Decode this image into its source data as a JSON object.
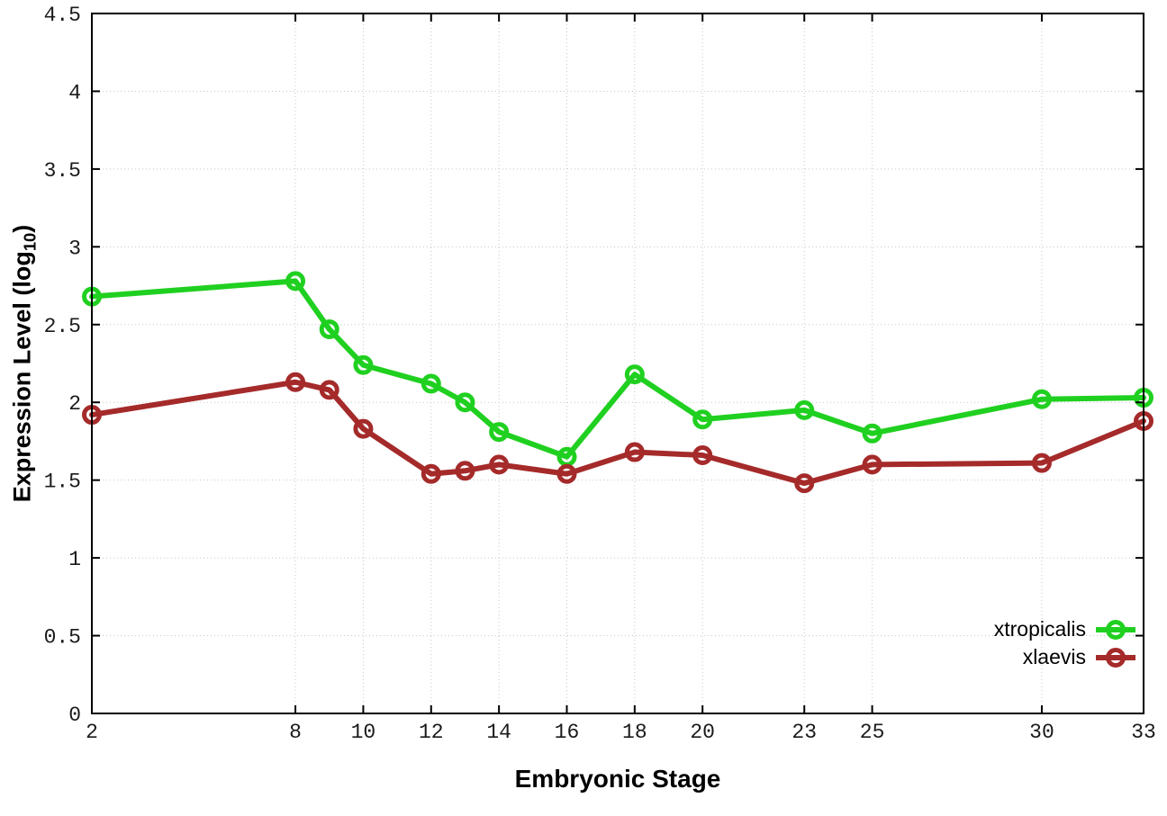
{
  "chart_data": {
    "type": "line",
    "title": "",
    "xlabel": "Embryonic Stage",
    "ylabel": "Expression Level (log10)",
    "ylabel_base": "Expression Level (log",
    "ylabel_sub": "10",
    "ylabel_close": ")",
    "xlim": [
      2,
      33
    ],
    "ylim": [
      0,
      4.5
    ],
    "x_ticks": [
      2,
      8,
      10,
      12,
      14,
      16,
      18,
      20,
      23,
      25,
      30,
      33
    ],
    "y_ticks": [
      0,
      0.5,
      1,
      1.5,
      2,
      2.5,
      3,
      3.5,
      4,
      4.5
    ],
    "y_tick_labels": [
      "0",
      "0.5",
      "1",
      "1.5",
      "2",
      "2.5",
      "3",
      "3.5",
      "4",
      "4.5"
    ],
    "grid": true,
    "legend_position": "inside-bottom-right",
    "x": [
      2,
      8,
      9,
      10,
      12,
      13,
      14,
      16,
      18,
      20,
      23,
      25,
      30,
      33
    ],
    "series": [
      {
        "name": "xtropicalis",
        "color": "#20d020",
        "values": [
          2.68,
          2.78,
          2.47,
          2.24,
          2.12,
          2.0,
          1.81,
          1.65,
          2.18,
          1.89,
          1.95,
          1.8,
          2.02,
          2.03
        ]
      },
      {
        "name": "xlaevis",
        "color": "#a52a2a",
        "values": [
          1.92,
          2.13,
          2.08,
          1.83,
          1.54,
          1.56,
          1.6,
          1.54,
          1.68,
          1.66,
          1.48,
          1.6,
          1.61,
          1.88
        ]
      }
    ],
    "style": {
      "grid_color": "#c8c8c8",
      "axis_color": "#000000",
      "background": "#ffffff",
      "line_width": 6,
      "marker_radius": 8.5,
      "marker_stroke": 5
    }
  }
}
